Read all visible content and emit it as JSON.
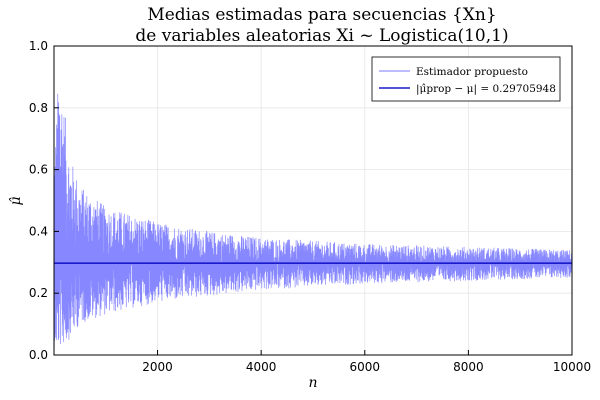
{
  "chart_data": {
    "type": "line",
    "title_line1": "Medias estimadas para secuencias {Xn}",
    "title_line2": "de variables aleatorias Xi ~ Logistica(10,1)",
    "xlabel": "n",
    "ylabel": "μ̂",
    "xlim": [
      1,
      10000
    ],
    "ylim": [
      0,
      1
    ],
    "xticks": [
      "2000",
      "4000",
      "6000",
      "8000",
      "10000"
    ],
    "xtick_values": [
      2000,
      4000,
      6000,
      8000,
      10000
    ],
    "yticks": [
      "0.0",
      "0.2",
      "0.4",
      "0.6",
      "0.8",
      "1.0"
    ],
    "ytick_values": [
      0,
      0.2,
      0.4,
      0.6,
      0.8,
      1.0
    ],
    "grid": true,
    "legend_position": "top-right",
    "series": [
      {
        "name": "Estimador propuesto",
        "color": "#7a7aff",
        "style": "noisy",
        "mean": 0.29705948,
        "envelope": [
          {
            "n": 1,
            "upper": 0.6,
            "lower": 0.02
          },
          {
            "n": 100,
            "upper": 0.95,
            "lower": 0.02
          },
          {
            "n": 300,
            "upper": 0.65,
            "lower": 0.05
          },
          {
            "n": 500,
            "upper": 0.55,
            "lower": 0.1
          },
          {
            "n": 1000,
            "upper": 0.48,
            "lower": 0.13
          },
          {
            "n": 2000,
            "upper": 0.43,
            "lower": 0.17
          },
          {
            "n": 3000,
            "upper": 0.4,
            "lower": 0.19
          },
          {
            "n": 4000,
            "upper": 0.38,
            "lower": 0.21
          },
          {
            "n": 6000,
            "upper": 0.36,
            "lower": 0.23
          },
          {
            "n": 8000,
            "upper": 0.35,
            "lower": 0.24
          },
          {
            "n": 10000,
            "upper": 0.34,
            "lower": 0.25
          }
        ]
      },
      {
        "name": "|μ̂prop − μ| = 0.29705948",
        "color": "#1a1acc",
        "style": "constant",
        "value": 0.29705948
      }
    ]
  }
}
